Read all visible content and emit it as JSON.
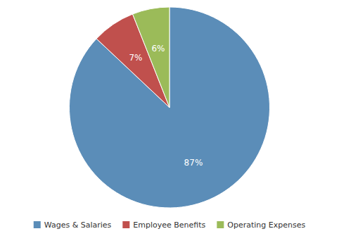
{
  "chart_data": {
    "type": "pie",
    "categories": [
      "Wages & Salaries",
      "Employee Benefits",
      "Operating Expenses"
    ],
    "values": [
      87,
      7,
      6
    ],
    "value_labels": [
      "87%",
      "7%",
      "6%"
    ],
    "colors": [
      "#5b8db8",
      "#c0504d",
      "#9bbb59"
    ],
    "data_labels": true,
    "legend": "bottom"
  }
}
